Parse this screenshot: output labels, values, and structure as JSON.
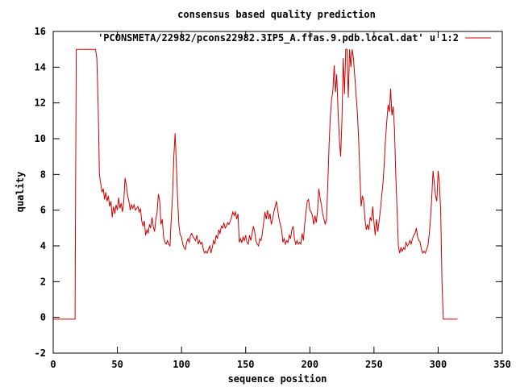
{
  "chart_data": {
    "type": "line",
    "title": "consensus based quality prediction",
    "xlabel": "sequence position",
    "ylabel": "quality",
    "xlim": [
      0,
      350
    ],
    "ylim": [
      -2,
      16
    ],
    "xticks": [
      0,
      50,
      100,
      150,
      200,
      250,
      300,
      350
    ],
    "yticks": [
      -2,
      0,
      2,
      4,
      6,
      8,
      10,
      12,
      14,
      16
    ],
    "grid": false,
    "legend_position": "top-right",
    "series": [
      {
        "name": "'PCONSMETA/22982/pcons22982.3IP5_A.ffas.9.pdb.local.dat' u 1:2",
        "color": "#cc0000",
        "points": [
          [
            0,
            -0.1
          ],
          [
            17,
            -0.1
          ],
          [
            17.5,
            7.5
          ],
          [
            18,
            15
          ],
          [
            33,
            15
          ],
          [
            34,
            14.5
          ],
          [
            35,
            12
          ],
          [
            36,
            8
          ],
          [
            37,
            7.5
          ],
          [
            38,
            7
          ],
          [
            39,
            7.2
          ],
          [
            40,
            6.6
          ],
          [
            41,
            7
          ],
          [
            42,
            6.5
          ],
          [
            43,
            6.8
          ],
          [
            44,
            6.2
          ],
          [
            45,
            6.5
          ],
          [
            46,
            5.6
          ],
          [
            47,
            6.2
          ],
          [
            48,
            5.8
          ],
          [
            49,
            6.3
          ],
          [
            50,
            6
          ],
          [
            51,
            6.7
          ],
          [
            52,
            6.1
          ],
          [
            53,
            6.4
          ],
          [
            54,
            5.9
          ],
          [
            55,
            6.5
          ],
          [
            56,
            7.8
          ],
          [
            57,
            7.4
          ],
          [
            58,
            6.8
          ],
          [
            59,
            6.5
          ],
          [
            60,
            6
          ],
          [
            61,
            6.3
          ],
          [
            62,
            6.1
          ],
          [
            63,
            6.3
          ],
          [
            64,
            6
          ],
          [
            65,
            6.1
          ],
          [
            66,
            6.2
          ],
          [
            67,
            5.9
          ],
          [
            68,
            6.1
          ],
          [
            69,
            5.4
          ],
          [
            70,
            5.1
          ],
          [
            71,
            5.4
          ],
          [
            72,
            4.6
          ],
          [
            73,
            4.9
          ],
          [
            74,
            4.7
          ],
          [
            75,
            5.2
          ],
          [
            76,
            5
          ],
          [
            77,
            5.6
          ],
          [
            78,
            5.1
          ],
          [
            79,
            4.8
          ],
          [
            80,
            5.5
          ],
          [
            81,
            5.9
          ],
          [
            82,
            6.9
          ],
          [
            83,
            6.5
          ],
          [
            84,
            5.2
          ],
          [
            85,
            5.5
          ],
          [
            86,
            4.5
          ],
          [
            87,
            4.2
          ],
          [
            88,
            4.1
          ],
          [
            89,
            4.3
          ],
          [
            90,
            4.1
          ],
          [
            91,
            4
          ],
          [
            92,
            5.5
          ],
          [
            93,
            6.8
          ],
          [
            94,
            9
          ],
          [
            95,
            10.3
          ],
          [
            96,
            8.5
          ],
          [
            97,
            6.5
          ],
          [
            98,
            5.1
          ],
          [
            99,
            4.6
          ],
          [
            100,
            4.5
          ],
          [
            101,
            4.1
          ],
          [
            102,
            3.9
          ],
          [
            103,
            3.8
          ],
          [
            104,
            4.2
          ],
          [
            105,
            4.4
          ],
          [
            106,
            4.2
          ],
          [
            107,
            4.6
          ],
          [
            108,
            4.7
          ],
          [
            109,
            4.5
          ],
          [
            110,
            4.4
          ],
          [
            111,
            4.3
          ],
          [
            112,
            4.6
          ],
          [
            113,
            4.1
          ],
          [
            114,
            4.3
          ],
          [
            115,
            4.1
          ],
          [
            116,
            4.2
          ],
          [
            117,
            3.8
          ],
          [
            118,
            3.6
          ],
          [
            119,
            3.7
          ],
          [
            120,
            3.6
          ],
          [
            121,
            3.8
          ],
          [
            122,
            4
          ],
          [
            123,
            3.6
          ],
          [
            124,
            3.9
          ],
          [
            125,
            4.3
          ],
          [
            126,
            4.1
          ],
          [
            127,
            4.6
          ],
          [
            128,
            4.4
          ],
          [
            129,
            4.9
          ],
          [
            130,
            4.7
          ],
          [
            131,
            5.1
          ],
          [
            132,
            5
          ],
          [
            133,
            5.3
          ],
          [
            134,
            5
          ],
          [
            135,
            5.1
          ],
          [
            136,
            5.3
          ],
          [
            137,
            5.2
          ],
          [
            138,
            5.4
          ],
          [
            139,
            5.6
          ],
          [
            140,
            5.9
          ],
          [
            141,
            5.7
          ],
          [
            142,
            5.9
          ],
          [
            143,
            5.5
          ],
          [
            144,
            5.8
          ],
          [
            145,
            4.2
          ],
          [
            146,
            4.4
          ],
          [
            147,
            4.2
          ],
          [
            148,
            4.5
          ],
          [
            149,
            4.3
          ],
          [
            150,
            4.6
          ],
          [
            151,
            4.2
          ],
          [
            152,
            4.1
          ],
          [
            153,
            4.6
          ],
          [
            154,
            4.3
          ],
          [
            155,
            4.7
          ],
          [
            156,
            5.1
          ],
          [
            157,
            4.8
          ],
          [
            158,
            4.3
          ],
          [
            159,
            4.1
          ],
          [
            160,
            4
          ],
          [
            161,
            4.4
          ],
          [
            162,
            4.3
          ],
          [
            163,
            4.7
          ],
          [
            164,
            5.3
          ],
          [
            165,
            5.9
          ],
          [
            166,
            5.5
          ],
          [
            167,
            6
          ],
          [
            168,
            5.5
          ],
          [
            169,
            5.8
          ],
          [
            170,
            5.2
          ],
          [
            171,
            5.5
          ],
          [
            172,
            5.9
          ],
          [
            173,
            6.2
          ],
          [
            174,
            6.5
          ],
          [
            175,
            6
          ],
          [
            176,
            5.5
          ],
          [
            177,
            5.2
          ],
          [
            178,
            4.9
          ],
          [
            179,
            4.2
          ],
          [
            180,
            4.4
          ],
          [
            181,
            4.1
          ],
          [
            182,
            4.3
          ],
          [
            183,
            4.2
          ],
          [
            184,
            4.6
          ],
          [
            185,
            4.4
          ],
          [
            186,
            4.9
          ],
          [
            187,
            5.1
          ],
          [
            188,
            4.4
          ],
          [
            189,
            4.1
          ],
          [
            190,
            4.3
          ],
          [
            191,
            4.1
          ],
          [
            192,
            4.2
          ],
          [
            193,
            4.1
          ],
          [
            194,
            4.7
          ],
          [
            195,
            4.3
          ],
          [
            196,
            5.2
          ],
          [
            197,
            5.9
          ],
          [
            198,
            6.5
          ],
          [
            199,
            6.6
          ],
          [
            200,
            6
          ],
          [
            201,
            5.9
          ],
          [
            202,
            5.7
          ],
          [
            203,
            5.2
          ],
          [
            204,
            5.7
          ],
          [
            205,
            5.3
          ],
          [
            206,
            5.9
          ],
          [
            207,
            7.2
          ],
          [
            208,
            6.7
          ],
          [
            209,
            6.3
          ],
          [
            210,
            5.8
          ],
          [
            211,
            5.5
          ],
          [
            212,
            5.2
          ],
          [
            213,
            5.5
          ],
          [
            214,
            7.5
          ],
          [
            215,
            9.7
          ],
          [
            216,
            11.2
          ],
          [
            217,
            12.2
          ],
          [
            218,
            12.7
          ],
          [
            219,
            14.1
          ],
          [
            220,
            12.6
          ],
          [
            221,
            13.6
          ],
          [
            222,
            11.5
          ],
          [
            223,
            10
          ],
          [
            224,
            9
          ],
          [
            225,
            11
          ],
          [
            226,
            14.5
          ],
          [
            227,
            12.5
          ],
          [
            228,
            15
          ],
          [
            229,
            15
          ],
          [
            230,
            12.3
          ],
          [
            231,
            15
          ],
          [
            232,
            14
          ],
          [
            233,
            15
          ],
          [
            234,
            14.5
          ],
          [
            235,
            13.5
          ],
          [
            236,
            12.5
          ],
          [
            237,
            11.5
          ],
          [
            238,
            10
          ],
          [
            239,
            8
          ],
          [
            240,
            6.2
          ],
          [
            241,
            6.8
          ],
          [
            242,
            6.5
          ],
          [
            243,
            5.5
          ],
          [
            244,
            4.9
          ],
          [
            245,
            5.2
          ],
          [
            246,
            4.9
          ],
          [
            247,
            5.6
          ],
          [
            248,
            5.4
          ],
          [
            249,
            6.2
          ],
          [
            250,
            5.3
          ],
          [
            251,
            4.6
          ],
          [
            252,
            5.5
          ],
          [
            253,
            4.8
          ],
          [
            254,
            5.4
          ],
          [
            255,
            6
          ],
          [
            256,
            6.8
          ],
          [
            257,
            7.5
          ],
          [
            258,
            8.6
          ],
          [
            259,
            10
          ],
          [
            260,
            11
          ],
          [
            261,
            11.9
          ],
          [
            262,
            11.5
          ],
          [
            263,
            12.8
          ],
          [
            264,
            11.3
          ],
          [
            265,
            11.8
          ],
          [
            266,
            10.5
          ],
          [
            267,
            8
          ],
          [
            268,
            6
          ],
          [
            269,
            4
          ],
          [
            270,
            3.6
          ],
          [
            271,
            3.9
          ],
          [
            272,
            3.7
          ],
          [
            273,
            3.9
          ],
          [
            274,
            3.8
          ],
          [
            275,
            4.2
          ],
          [
            276,
            4
          ],
          [
            277,
            4.1
          ],
          [
            278,
            4.3
          ],
          [
            279,
            4.1
          ],
          [
            280,
            4.4
          ],
          [
            281,
            4.6
          ],
          [
            282,
            4.7
          ],
          [
            283,
            5
          ],
          [
            284,
            4.5
          ],
          [
            285,
            4.3
          ],
          [
            286,
            4.2
          ],
          [
            287,
            3.8
          ],
          [
            288,
            3.6
          ],
          [
            289,
            3.7
          ],
          [
            290,
            3.6
          ],
          [
            291,
            3.8
          ],
          [
            292,
            4
          ],
          [
            293,
            4.6
          ],
          [
            294,
            5.5
          ],
          [
            295,
            6.7
          ],
          [
            296,
            8.2
          ],
          [
            297,
            7.5
          ],
          [
            298,
            6.8
          ],
          [
            299,
            6.5
          ],
          [
            300,
            8.2
          ],
          [
            301,
            7.5
          ],
          [
            302,
            6
          ],
          [
            303,
            2
          ],
          [
            304,
            -0.1
          ],
          [
            315,
            -0.1
          ]
        ],
        "point_note": "points are [x, y] pairs in data units"
      }
    ]
  }
}
